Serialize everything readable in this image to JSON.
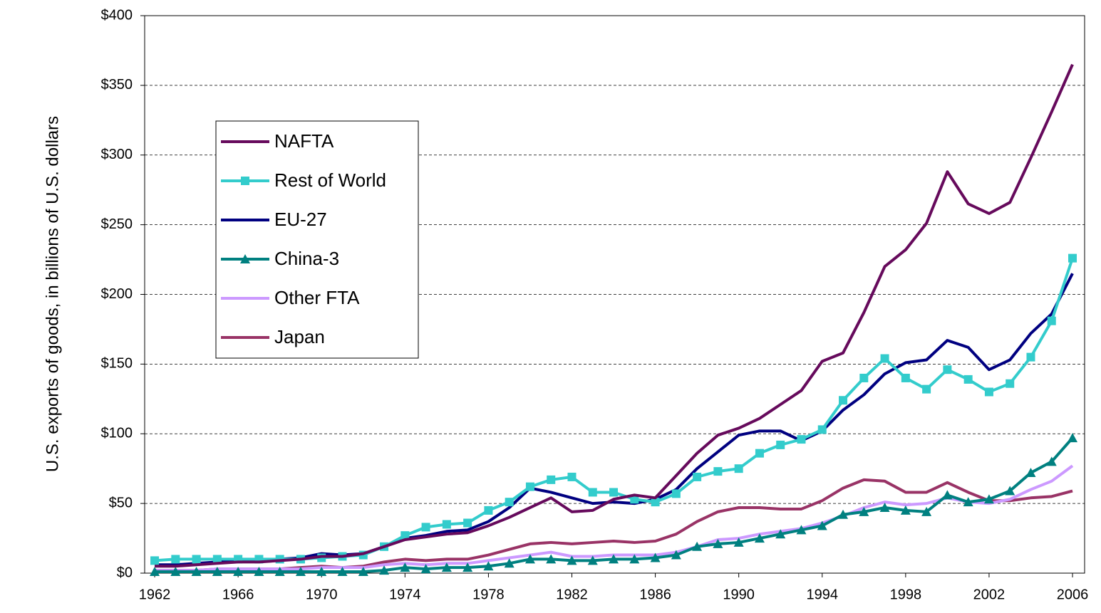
{
  "chart_data": {
    "type": "line",
    "y_label": "U.S. exports of goods, in billions of U.S. dollars",
    "x": [
      1962,
      1963,
      1964,
      1965,
      1966,
      1967,
      1968,
      1969,
      1970,
      1971,
      1972,
      1973,
      1974,
      1975,
      1976,
      1977,
      1978,
      1979,
      1980,
      1981,
      1982,
      1983,
      1984,
      1985,
      1986,
      1987,
      1988,
      1989,
      1990,
      1991,
      1992,
      1993,
      1994,
      1995,
      1996,
      1997,
      1998,
      1999,
      2000,
      2001,
      2002,
      2003,
      2004,
      2005,
      2006
    ],
    "xlim": [
      1961.52,
      2006.58
    ],
    "xticks": [
      1962,
      1966,
      1970,
      1974,
      1978,
      1982,
      1986,
      1990,
      1994,
      1998,
      2002,
      2006
    ],
    "ylim": [
      0,
      400
    ],
    "yticks": [
      {
        "value": 0,
        "label": "$0"
      },
      {
        "value": 50,
        "label": "$50"
      },
      {
        "value": 100,
        "label": "$100"
      },
      {
        "value": 150,
        "label": "$150"
      },
      {
        "value": 200,
        "label": "$200"
      },
      {
        "value": 250,
        "label": "$250"
      },
      {
        "value": 300,
        "label": "$300"
      },
      {
        "value": 350,
        "label": "$350"
      },
      {
        "value": 400,
        "label": "$400"
      }
    ],
    "grid": true,
    "legend": "upper left",
    "series": [
      {
        "name": "NAFTA",
        "color": "#660a5c",
        "marker": "none",
        "values": [
          5,
          5,
          6,
          7,
          8,
          8,
          9,
          10,
          12,
          12,
          14,
          19,
          24,
          26,
          28,
          29,
          34,
          40,
          47,
          54,
          44,
          45,
          53,
          56,
          54,
          70,
          86,
          99,
          104,
          111,
          121,
          131,
          152,
          158,
          187,
          220,
          232,
          251,
          288,
          265,
          258,
          266,
          298,
          331,
          365
        ]
      },
      {
        "name": "Rest of World",
        "color": "#33cccc",
        "marker": "square",
        "values": [
          9,
          10,
          10,
          10,
          10,
          10,
          10,
          10,
          11,
          12,
          13,
          19,
          27,
          33,
          35,
          36,
          45,
          51,
          62,
          67,
          69,
          58,
          58,
          53,
          51,
          57,
          69,
          73,
          75,
          86,
          92,
          96,
          103,
          124,
          140,
          154,
          140,
          132,
          146,
          139,
          130,
          136,
          155,
          181,
          226
        ]
      },
      {
        "name": "EU-27",
        "color": "#000080",
        "marker": "none",
        "values": [
          6,
          6,
          7,
          8,
          9,
          9,
          10,
          11,
          14,
          13,
          14,
          19,
          25,
          27,
          30,
          31,
          37,
          47,
          61,
          58,
          54,
          50,
          51,
          50,
          53,
          60,
          75,
          87,
          99,
          102,
          102,
          95,
          102,
          117,
          128,
          143,
          151,
          153,
          167,
          162,
          146,
          153,
          172,
          186,
          215
        ]
      },
      {
        "name": "China-3",
        "color": "#008080",
        "marker": "triangle",
        "values": [
          1,
          1,
          1,
          1,
          1,
          1,
          1,
          1,
          1,
          1,
          1,
          2,
          4,
          3,
          4,
          4,
          5,
          7,
          10,
          10,
          9,
          9,
          10,
          10,
          11,
          13,
          19,
          21,
          22,
          25,
          28,
          31,
          34,
          42,
          44,
          47,
          45,
          44,
          56,
          51,
          53,
          59,
          72,
          80,
          97
        ]
      },
      {
        "name": "Other FTA",
        "color": "#cc99ff",
        "marker": "none",
        "values": [
          2,
          2,
          2,
          3,
          3,
          3,
          3,
          3,
          4,
          4,
          4,
          6,
          7,
          6,
          7,
          7,
          9,
          11,
          13,
          15,
          12,
          12,
          13,
          13,
          13,
          15,
          19,
          24,
          25,
          28,
          30,
          32,
          36,
          41,
          47,
          51,
          49,
          50,
          54,
          51,
          50,
          53,
          60,
          66,
          77
        ]
      },
      {
        "name": "Japan",
        "color": "#993366",
        "marker": "none",
        "values": [
          2,
          2,
          2,
          3,
          3,
          3,
          3,
          4,
          5,
          4,
          5,
          8,
          10,
          9,
          10,
          10,
          13,
          17,
          21,
          22,
          21,
          22,
          23,
          22,
          23,
          28,
          37,
          44,
          47,
          47,
          46,
          46,
          52,
          61,
          67,
          66,
          58,
          58,
          65,
          58,
          52,
          52,
          54,
          55,
          59
        ]
      }
    ]
  }
}
